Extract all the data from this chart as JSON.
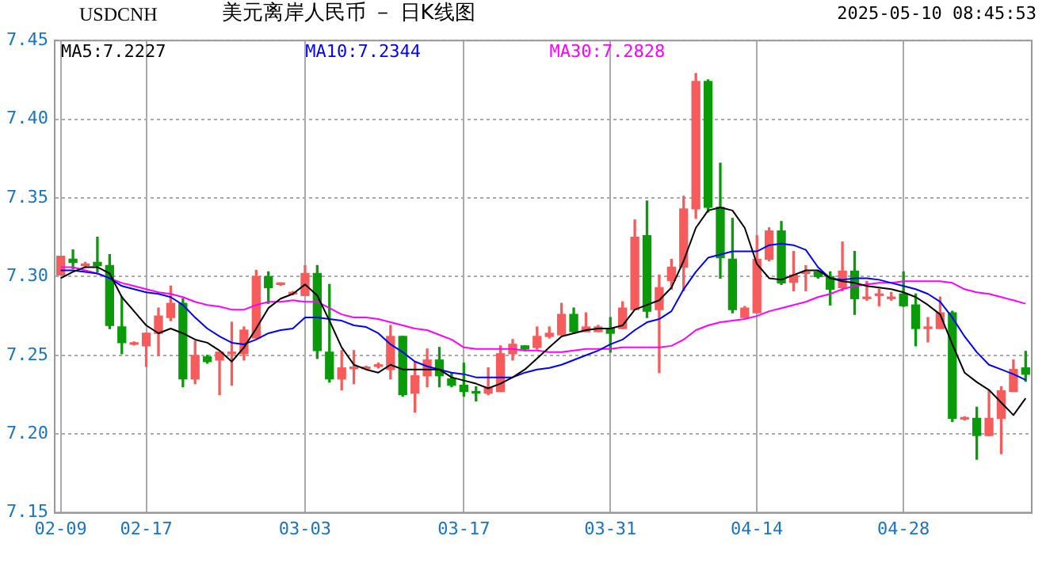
{
  "chart_data": {
    "type": "candlestick",
    "title": "美元离岸人民币 － 日K线图",
    "subtitle": "USDCNH",
    "annotations": [
      "2025-05-10 08:45:53"
    ],
    "categories": [
      "02-09",
      null,
      null,
      null,
      null,
      null,
      null,
      "02-17",
      null,
      null,
      null,
      null,
      null,
      null,
      null,
      null,
      null,
      null,
      null,
      null,
      "03-03",
      null,
      null,
      null,
      null,
      null,
      null,
      null,
      null,
      null,
      null,
      null,
      null,
      "03-17",
      null,
      null,
      null,
      null,
      null,
      null,
      null,
      null,
      null,
      null,
      null,
      "03-31",
      null,
      null,
      null,
      null,
      null,
      null,
      null,
      null,
      null,
      null,
      null,
      "04-14",
      null,
      null,
      null,
      null,
      null,
      null,
      null,
      null,
      null,
      null,
      null,
      "04-28",
      null,
      null,
      null,
      null,
      null,
      null,
      null,
      null,
      null,
      null
    ],
    "ohlc": [
      [
        7.301,
        7.313,
        7.301,
        7.313
      ],
      [
        7.311,
        7.317,
        7.305,
        7.309
      ],
      [
        7.307,
        7.309,
        7.306,
        7.308
      ],
      [
        7.309,
        7.325,
        7.303,
        7.307
      ],
      [
        7.307,
        7.314,
        7.267,
        7.269
      ],
      [
        7.268,
        7.287,
        7.251,
        7.258
      ],
      [
        7.257,
        7.2585,
        7.2565,
        7.258
      ],
      [
        7.256,
        7.264,
        7.243,
        7.264
      ],
      [
        7.264,
        7.28,
        7.25,
        7.275
      ],
      [
        7.274,
        7.294,
        7.272,
        7.283
      ],
      [
        7.283,
        7.286,
        7.23,
        7.235
      ],
      [
        7.235,
        7.259,
        7.232,
        7.25
      ],
      [
        7.249,
        7.25,
        7.245,
        7.246
      ],
      [
        7.247,
        7.252,
        7.225,
        7.252
      ],
      [
        7.251,
        7.271,
        7.231,
        7.252
      ],
      [
        7.251,
        7.268,
        7.247,
        7.266
      ],
      [
        7.261,
        7.304,
        7.261,
        7.3
      ],
      [
        7.3,
        7.303,
        7.283,
        7.293
      ],
      [
        7.295,
        7.296,
        7.2945,
        7.2955
      ],
      [
        7.289,
        7.2905,
        7.2885,
        7.2895
      ],
      [
        7.288,
        7.307,
        7.288,
        7.302
      ],
      [
        7.302,
        7.307,
        7.248,
        7.253
      ],
      [
        7.252,
        7.295,
        7.233,
        7.235
      ],
      [
        7.235,
        7.253,
        7.228,
        7.242
      ],
      [
        7.2415,
        7.253,
        7.232,
        7.242
      ],
      [
        7.2415,
        7.243,
        7.241,
        7.242
      ],
      [
        7.243,
        7.245,
        7.242,
        7.244
      ],
      [
        7.241,
        7.269,
        7.235,
        7.262
      ],
      [
        7.262,
        7.262,
        7.224,
        7.225
      ],
      [
        7.226,
        7.246,
        7.214,
        7.237
      ],
      [
        7.237,
        7.254,
        7.23,
        7.247
      ],
      [
        7.247,
        7.255,
        7.23,
        7.237
      ],
      [
        7.235,
        7.239,
        7.23,
        7.231
      ],
      [
        7.231,
        7.245,
        7.224,
        7.227
      ],
      [
        7.227,
        7.23,
        7.221,
        7.226
      ],
      [
        7.226,
        7.242,
        7.225,
        7.229
      ],
      [
        7.227,
        7.256,
        7.227,
        7.251
      ],
      [
        7.251,
        7.26,
        7.247,
        7.257
      ],
      [
        7.256,
        7.256,
        7.253,
        7.254
      ],
      [
        7.255,
        7.268,
        7.254,
        7.262
      ],
      [
        7.262,
        7.268,
        7.261,
        7.264
      ],
      [
        7.263,
        7.283,
        7.263,
        7.276
      ],
      [
        7.276,
        7.28,
        7.264,
        7.265
      ],
      [
        7.265,
        7.277,
        7.265,
        7.268
      ],
      [
        7.265,
        7.269,
        7.265,
        7.268
      ],
      [
        7.267,
        7.274,
        7.252,
        7.264
      ],
      [
        7.267,
        7.284,
        7.267,
        7.28
      ],
      [
        7.279,
        7.336,
        7.279,
        7.325
      ],
      [
        7.326,
        7.348,
        7.274,
        7.278
      ],
      [
        7.279,
        7.301,
        7.239,
        7.293
      ],
      [
        7.2975,
        7.311,
        7.292,
        7.306
      ],
      [
        7.306,
        7.351,
        7.291,
        7.343
      ],
      [
        7.343,
        7.429,
        7.337,
        7.424
      ],
      [
        7.424,
        7.425,
        7.341,
        7.344
      ],
      [
        7.344,
        7.372,
        7.299,
        7.312
      ],
      [
        7.311,
        7.337,
        7.277,
        7.279
      ],
      [
        7.274,
        7.281,
        7.274,
        7.28
      ],
      [
        7.277,
        7.326,
        7.277,
        7.311
      ],
      [
        7.311,
        7.331,
        7.31,
        7.329
      ],
      [
        7.329,
        7.335,
        7.295,
        7.296
      ],
      [
        7.2965,
        7.316,
        7.291,
        7.301
      ],
      [
        7.302,
        7.307,
        7.291,
        7.3025
      ],
      [
        7.303,
        7.3035,
        7.299,
        7.3
      ],
      [
        7.3,
        7.303,
        7.282,
        7.292
      ],
      [
        7.293,
        7.322,
        7.291,
        7.3035
      ],
      [
        7.3035,
        7.316,
        7.276,
        7.286
      ],
      [
        7.286,
        7.297,
        7.285,
        7.287
      ],
      [
        7.288,
        7.292,
        7.2815,
        7.2885
      ],
      [
        7.286,
        7.29,
        7.285,
        7.287
      ],
      [
        7.289,
        7.303,
        7.281,
        7.2815
      ],
      [
        7.282,
        7.289,
        7.256,
        7.267
      ],
      [
        7.267,
        7.274,
        7.2585,
        7.268
      ],
      [
        7.267,
        7.287,
        7.267,
        7.277
      ],
      [
        7.277,
        7.278,
        7.208,
        7.21
      ],
      [
        7.2095,
        7.211,
        7.209,
        7.21
      ],
      [
        7.21,
        7.217,
        7.184,
        7.199
      ],
      [
        7.199,
        7.2275,
        7.199,
        7.21
      ],
      [
        7.21,
        7.23,
        7.1875,
        7.2275
      ],
      [
        7.227,
        7.247,
        7.227,
        7.241
      ],
      [
        7.242,
        7.2525,
        7.2335,
        7.238
      ]
    ],
    "colors": [
      "#f65c5c",
      "#0a9a0a",
      "#f65c5c",
      "#0a9a0a",
      "#0a9a0a",
      "#0a9a0a",
      "#f65c5c",
      "#f65c5c",
      "#f65c5c",
      "#f65c5c",
      "#0a9a0a",
      "#f65c5c",
      "#0a9a0a",
      "#f65c5c",
      "#f65c5c",
      "#f65c5c",
      "#f65c5c",
      "#0a9a0a",
      "#f65c5c",
      "#f65c5c",
      "#f65c5c",
      "#0a9a0a",
      "#0a9a0a",
      "#f65c5c",
      "#f65c5c",
      "#f65c5c",
      "#f65c5c",
      "#f65c5c",
      "#0a9a0a",
      "#f65c5c",
      "#f65c5c",
      "#0a9a0a",
      "#0a9a0a",
      "#0a9a0a",
      "#0a9a0a",
      "#f65c5c",
      "#f65c5c",
      "#f65c5c",
      "#0a9a0a",
      "#f65c5c",
      "#f65c5c",
      "#f65c5c",
      "#0a9a0a",
      "#f65c5c",
      "#f65c5c",
      "#0a9a0a",
      "#f65c5c",
      "#f65c5c",
      "#0a9a0a",
      "#f65c5c",
      "#f65c5c",
      "#f65c5c",
      "#f65c5c",
      "#0a9a0a",
      "#0a9a0a",
      "#0a9a0a",
      "#f65c5c",
      "#f65c5c",
      "#f65c5c",
      "#0a9a0a",
      "#f65c5c",
      "#f65c5c",
      "#0a9a0a",
      "#0a9a0a",
      "#f65c5c",
      "#0a9a0a",
      "#f65c5c",
      "#f65c5c",
      "#f65c5c",
      "#0a9a0a",
      "#0a9a0a",
      "#f65c5c",
      "#f65c5c",
      "#0a9a0a",
      "#f65c5c",
      "#0a9a0a",
      "#f65c5c",
      "#f65c5c",
      "#f65c5c",
      "#0a9a0a"
    ],
    "series": [
      {
        "type": "line",
        "name": "MA5:7.2227",
        "color": "#000000",
        "values": [
          7.299,
          7.303,
          7.306,
          7.306,
          7.302,
          7.287,
          7.278,
          7.269,
          7.264,
          7.267,
          7.264,
          7.26,
          7.258,
          7.253,
          7.246,
          7.255,
          7.267,
          7.28,
          7.286,
          7.289,
          7.295,
          7.288,
          7.272,
          7.255,
          7.244,
          7.241,
          7.239,
          7.244,
          7.241,
          7.241,
          7.241,
          7.241,
          7.236,
          7.234,
          7.232,
          7.229,
          7.232,
          7.236,
          7.241,
          7.248,
          7.255,
          7.262,
          7.264,
          7.266,
          7.267,
          7.267,
          7.269,
          7.279,
          7.282,
          7.285,
          7.293,
          7.31,
          7.331,
          7.342,
          7.344,
          7.342,
          7.331,
          7.308,
          7.299,
          7.298,
          7.301,
          7.304,
          7.304,
          7.299,
          7.297,
          7.296,
          7.294,
          7.293,
          7.292,
          7.29,
          7.287,
          7.282,
          7.276,
          7.257,
          7.239,
          7.233,
          7.228,
          7.22,
          7.212,
          7.2227
        ]
      },
      {
        "type": "line",
        "name": "MA10:7.2344",
        "color": "#0000ff",
        "values": [
          7.304,
          7.304,
          7.303,
          7.302,
          7.299,
          7.294,
          7.292,
          7.29,
          7.289,
          7.287,
          7.282,
          7.274,
          7.267,
          7.262,
          7.258,
          7.257,
          7.26,
          7.264,
          7.266,
          7.267,
          7.274,
          7.274,
          7.273,
          7.272,
          7.269,
          7.268,
          7.264,
          7.257,
          7.252,
          7.246,
          7.243,
          7.241,
          7.239,
          7.238,
          7.236,
          7.236,
          7.236,
          7.236,
          7.239,
          7.241,
          7.242,
          7.244,
          7.247,
          7.25,
          7.253,
          7.257,
          7.26,
          7.266,
          7.271,
          7.273,
          7.278,
          7.292,
          7.303,
          7.312,
          7.314,
          7.316,
          7.316,
          7.316,
          7.32,
          7.321,
          7.32,
          7.317,
          7.306,
          7.299,
          7.298,
          7.299,
          7.299,
          7.298,
          7.296,
          7.294,
          7.292,
          7.289,
          7.284,
          7.274,
          7.262,
          7.252,
          7.244,
          7.241,
          7.238,
          7.2344
        ]
      },
      {
        "type": "line",
        "name": "MA30:7.2828",
        "color": "#ff00ff",
        "values": [
          7.306,
          7.306,
          7.304,
          7.302,
          7.299,
          7.296,
          7.294,
          7.292,
          7.29,
          7.289,
          7.287,
          7.284,
          7.282,
          7.281,
          7.279,
          7.279,
          7.282,
          7.284,
          7.284,
          7.285,
          7.284,
          7.284,
          7.28,
          7.276,
          7.274,
          7.274,
          7.273,
          7.271,
          7.269,
          7.267,
          7.266,
          7.263,
          7.26,
          7.255,
          7.254,
          7.254,
          7.254,
          7.254,
          7.253,
          7.253,
          7.252,
          7.252,
          7.253,
          7.254,
          7.254,
          7.254,
          7.255,
          7.255,
          7.255,
          7.255,
          7.256,
          7.26,
          7.266,
          7.269,
          7.271,
          7.272,
          7.273,
          7.275,
          7.278,
          7.28,
          7.282,
          7.284,
          7.287,
          7.289,
          7.292,
          7.294,
          7.295,
          7.296,
          7.296,
          7.297,
          7.297,
          7.297,
          7.297,
          7.296,
          7.292,
          7.29,
          7.289,
          7.287,
          7.285,
          7.2828
        ]
      }
    ],
    "ylim": [
      7.15,
      7.45
    ],
    "yticks": [
      {
        "value": 7.15,
        "label": "7.15"
      },
      {
        "value": 7.2,
        "label": "7.20"
      },
      {
        "value": 7.25,
        "label": "7.25"
      },
      {
        "value": 7.3,
        "label": "7.30"
      },
      {
        "value": 7.35,
        "label": "7.35"
      },
      {
        "value": 7.4,
        "label": "7.40"
      },
      {
        "value": 7.45,
        "label": "7.45"
      }
    ],
    "grid": true,
    "legend": "top left",
    "marker": "none",
    "line_style": "solid"
  }
}
